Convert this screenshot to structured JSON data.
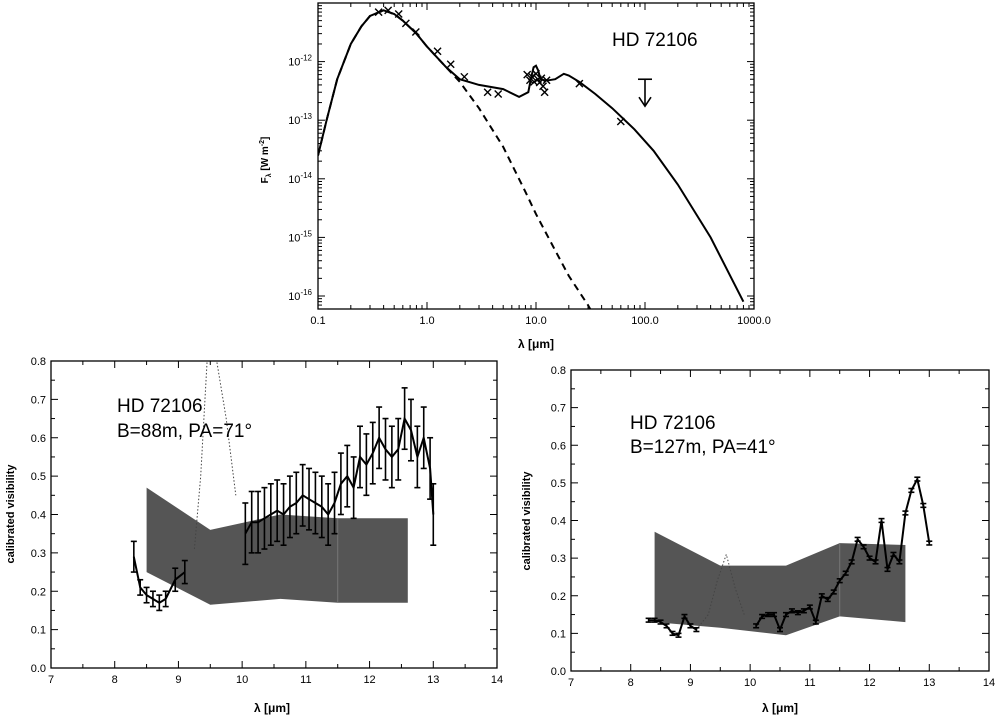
{
  "chart_data": [
    {
      "id": "sed",
      "type": "line",
      "annotation": "HD 72106",
      "xlabel": "λ [μm]",
      "ylabel": "F_λ [W m^-2]",
      "xscale": "log",
      "yscale": "log",
      "xlim": [
        0.1,
        1000
      ],
      "ylim": [
        6e-17,
        1e-11
      ],
      "xticks": [
        0.1,
        1,
        10,
        100,
        1000
      ],
      "xtick_labels": [
        "0.1",
        "1.0",
        "10.0",
        "100.0",
        "1000.0"
      ],
      "yticks": [
        1e-16,
        1e-15,
        1e-14,
        1e-13,
        1e-12
      ],
      "ytick_labels": [
        {
          "base": "10",
          "exp": "-16"
        },
        {
          "base": "10",
          "exp": "-15"
        },
        {
          "base": "10",
          "exp": "-14"
        },
        {
          "base": "10",
          "exp": "-13"
        },
        {
          "base": "10",
          "exp": "-12"
        }
      ],
      "series": [
        {
          "style": "solid",
          "x": [
            0.1,
            0.12,
            0.15,
            0.2,
            0.25,
            0.3,
            0.4,
            0.5,
            0.6,
            0.8,
            1.0,
            1.5,
            2.0,
            3.0,
            5.0,
            7.0,
            8.5,
            9.0,
            9.5,
            10.0,
            10.5,
            11.0,
            12.0,
            13.0,
            15.0,
            18.0,
            20.0,
            25.0,
            35.0,
            50.0,
            80.0,
            120.0,
            200.0,
            400.0,
            800.0
          ],
          "y": [
            2.5e-14,
            1e-13,
            5e-13,
            2e-12,
            4e-12,
            6e-12,
            7.5e-12,
            6.5e-12,
            5e-12,
            3e-12,
            1.8e-12,
            8e-13,
            5e-13,
            4e-13,
            3.4e-13,
            2.5e-13,
            3e-13,
            5.2e-13,
            8e-13,
            8.5e-13,
            7e-13,
            5e-13,
            4.8e-13,
            4.8e-13,
            5e-13,
            6.2e-13,
            5.8e-13,
            4.5e-13,
            2.8e-13,
            1.6e-13,
            7e-14,
            3e-14,
            8e-15,
            1e-15,
            8e-17
          ]
        },
        {
          "style": "dashed",
          "x": [
            0.1,
            0.12,
            0.15,
            0.2,
            0.25,
            0.3,
            0.4,
            0.5,
            0.6,
            0.8,
            1.0,
            1.5,
            2.0,
            3.0,
            5.0,
            8.0,
            10.0,
            15.0,
            20.0,
            30.0,
            37.0
          ],
          "y": [
            2.5e-14,
            1e-13,
            5e-13,
            2e-12,
            4e-12,
            6e-12,
            7.5e-12,
            6.5e-12,
            5e-12,
            3e-12,
            1.8e-12,
            8e-13,
            4.5e-13,
            1.6e-13,
            3.5e-14,
            6e-15,
            2.5e-15,
            6e-16,
            2.2e-16,
            7e-17,
            3.5e-17
          ]
        }
      ],
      "photometry": {
        "x": [
          0.36,
          0.44,
          0.55,
          0.64,
          0.79,
          1.25,
          1.65,
          2.2,
          3.6,
          4.5,
          8.3,
          8.8,
          9.2,
          9.6,
          10.0,
          10.4,
          10.8,
          11.2,
          11.6,
          12.0,
          12.5,
          25.0,
          60.0
        ],
        "y": [
          7e-12,
          7.5e-12,
          6.5e-12,
          4.5e-12,
          3.2e-12,
          1.5e-12,
          9e-13,
          5.5e-13,
          3e-13,
          2.8e-13,
          6e-13,
          4.8e-13,
          5.5e-13,
          4.5e-13,
          6.2e-13,
          5e-13,
          4.4e-13,
          5.2e-13,
          3.8e-13,
          3e-13,
          4.8e-13,
          4.2e-13,
          9.5e-14
        ]
      },
      "upper_limit": {
        "x": 100,
        "y": 5e-13
      }
    },
    {
      "id": "vis_88",
      "type": "line",
      "annotation_lines": [
        "HD 72106",
        "B=88m, PA=71°"
      ],
      "xlabel": "λ [μm]",
      "ylabel": "calibrated visibility",
      "xlim": [
        7,
        14
      ],
      "ylim": [
        0,
        0.8
      ],
      "xticks": [
        7,
        8,
        9,
        10,
        11,
        12,
        13,
        14
      ],
      "xtick_labels": [
        "7",
        "8",
        "9",
        "10",
        "11",
        "12",
        "13",
        "14"
      ],
      "yticks": [
        0,
        0.1,
        0.2,
        0.3,
        0.4,
        0.5,
        0.6,
        0.7,
        0.8
      ],
      "ytick_labels": [
        "0.0",
        "0.1",
        "0.2",
        "0.3",
        "0.4",
        "0.5",
        "0.6",
        "0.7",
        "0.8"
      ],
      "series": [
        {
          "style": "solid",
          "x": [
            8.3,
            8.4,
            8.5,
            8.6,
            8.7,
            8.8,
            8.95,
            9.1
          ],
          "y": [
            0.29,
            0.21,
            0.19,
            0.18,
            0.17,
            0.18,
            0.23,
            0.25
          ],
          "err": [
            0.04,
            0.02,
            0.02,
            0.02,
            0.02,
            0.02,
            0.03,
            0.03
          ]
        },
        {
          "style": "solid",
          "x": [
            10.05,
            10.15,
            10.25,
            10.35,
            10.45,
            10.55,
            10.65,
            10.75,
            10.85,
            10.95,
            11.05,
            11.15,
            11.25,
            11.35,
            11.45,
            11.55,
            11.65,
            11.75,
            11.85,
            11.95,
            12.05,
            12.15,
            12.25,
            12.35,
            12.45,
            12.55,
            12.65,
            12.75,
            12.85,
            12.95,
            13.0
          ],
          "y": [
            0.35,
            0.38,
            0.38,
            0.39,
            0.4,
            0.41,
            0.4,
            0.42,
            0.43,
            0.45,
            0.44,
            0.43,
            0.42,
            0.4,
            0.43,
            0.48,
            0.5,
            0.47,
            0.55,
            0.53,
            0.56,
            0.6,
            0.57,
            0.55,
            0.57,
            0.65,
            0.62,
            0.55,
            0.6,
            0.52,
            0.4
          ]
        }
      ],
      "errorbar_half": 0.08,
      "model_polygon": {
        "x": [
          8.5,
          9.5,
          10.6,
          11.5,
          12.6,
          12.6,
          11.5,
          10.6,
          9.5,
          8.5
        ],
        "y": [
          0.47,
          0.36,
          0.4,
          0.39,
          0.39,
          0.17,
          0.17,
          0.18,
          0.165,
          0.25
        ]
      },
      "dotted": {
        "x": [
          9.25,
          9.35,
          9.45,
          9.6,
          9.75,
          9.9
        ],
        "y": [
          0.31,
          0.5,
          0.8,
          0.8,
          0.65,
          0.45
        ]
      }
    },
    {
      "id": "vis_127",
      "type": "line",
      "annotation_lines": [
        "HD 72106",
        "B=127m, PA=41°"
      ],
      "xlabel": "λ [μm]",
      "ylabel": "calibrated visibility",
      "xlim": [
        7,
        14
      ],
      "ylim": [
        0,
        0.8
      ],
      "xticks": [
        7,
        8,
        9,
        10,
        11,
        12,
        13,
        14
      ],
      "xtick_labels": [
        "7",
        "8",
        "9",
        "10",
        "11",
        "12",
        "13",
        "14"
      ],
      "yticks": [
        0,
        0.1,
        0.2,
        0.3,
        0.4,
        0.5,
        0.6,
        0.7,
        0.8
      ],
      "ytick_labels": [
        "0.0",
        "0.1",
        "0.2",
        "0.3",
        "0.4",
        "0.5",
        "0.6",
        "0.7",
        "0.8"
      ],
      "series": [
        {
          "style": "solid",
          "x": [
            8.3,
            8.4,
            8.5,
            8.6,
            8.7,
            8.8,
            8.9,
            9.0,
            9.1
          ],
          "y": [
            0.135,
            0.135,
            0.13,
            0.12,
            0.1,
            0.095,
            0.145,
            0.12,
            0.11
          ],
          "err": [
            0.005,
            0.005,
            0.005,
            0.005,
            0.005,
            0.005,
            0.005,
            0.005,
            0.005
          ]
        },
        {
          "style": "solid",
          "x": [
            10.1,
            10.2,
            10.3,
            10.4,
            10.5,
            10.6,
            10.7,
            10.8,
            10.9,
            11.0,
            11.1,
            11.2,
            11.3,
            11.4,
            11.5,
            11.6,
            11.7,
            11.8,
            11.9,
            12.0,
            12.1,
            12.2,
            12.3,
            12.4,
            12.5,
            12.6,
            12.7,
            12.8,
            12.9,
            13.0
          ],
          "y": [
            0.12,
            0.145,
            0.15,
            0.15,
            0.11,
            0.15,
            0.16,
            0.155,
            0.16,
            0.17,
            0.13,
            0.2,
            0.19,
            0.21,
            0.24,
            0.26,
            0.29,
            0.35,
            0.33,
            0.3,
            0.29,
            0.4,
            0.27,
            0.31,
            0.29,
            0.42,
            0.48,
            0.51,
            0.44,
            0.34
          ],
          "err": [
            0.005,
            0.005,
            0.005,
            0.005,
            0.005,
            0.005,
            0.005,
            0.005,
            0.005,
            0.005,
            0.005,
            0.005,
            0.005,
            0.005,
            0.005,
            0.005,
            0.005,
            0.005,
            0.005,
            0.005,
            0.005,
            0.005,
            0.005,
            0.005,
            0.005,
            0.005,
            0.005,
            0.005,
            0.005,
            0.005
          ]
        }
      ],
      "model_polygon": {
        "x": [
          8.4,
          9.5,
          10.6,
          11.5,
          12.6,
          12.6,
          11.5,
          10.6,
          9.5,
          8.4
        ],
        "y": [
          0.37,
          0.28,
          0.28,
          0.34,
          0.335,
          0.13,
          0.145,
          0.095,
          0.115,
          0.13
        ]
      },
      "dotted": {
        "x": [
          9.1,
          9.3,
          9.45,
          9.6,
          9.75,
          9.9
        ],
        "y": [
          0.11,
          0.15,
          0.24,
          0.31,
          0.22,
          0.15
        ]
      }
    }
  ]
}
